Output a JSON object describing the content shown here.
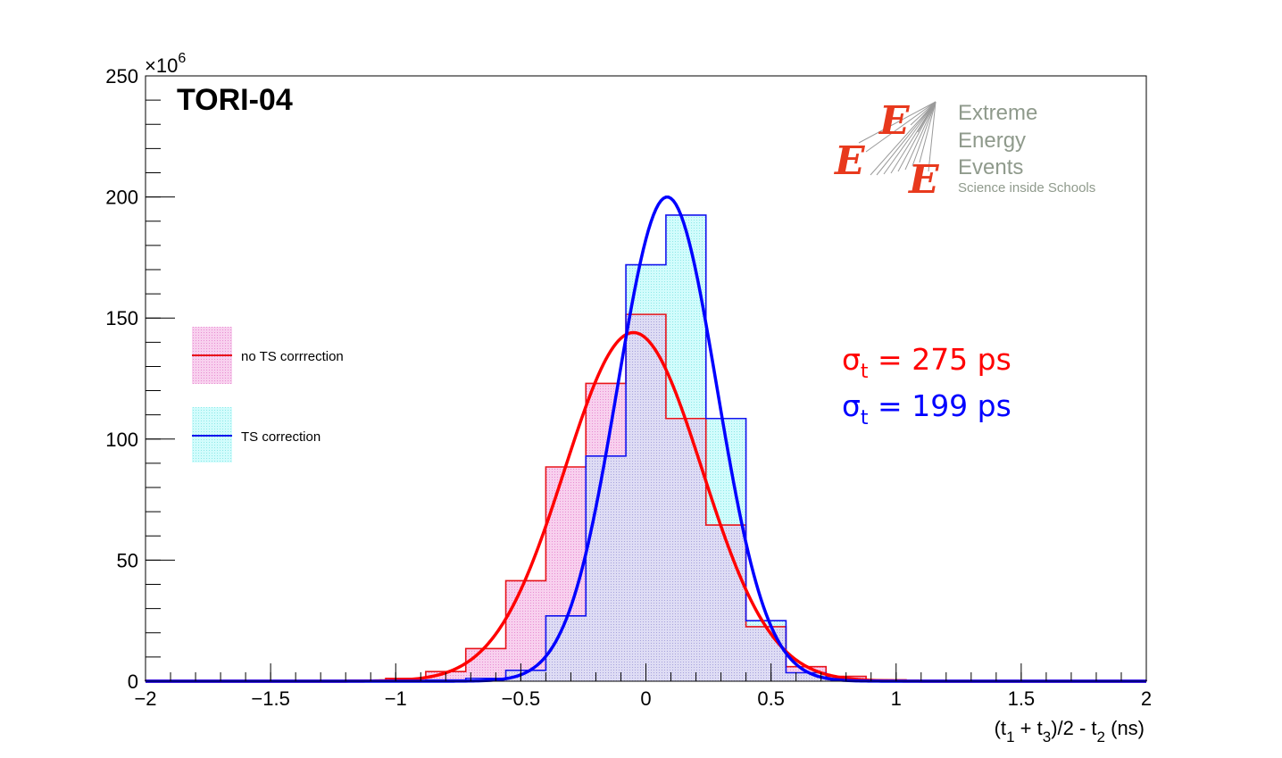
{
  "chart_data": {
    "type": "bar",
    "title": "TORI-04",
    "xlabel": {
      "pre": "(t",
      "sub1": "1",
      "mid1": " + t",
      "sub2": "3",
      "mid2": ")/2 - t",
      "sub3": "2",
      "post": " (ns)"
    },
    "yexponent": {
      "base": "×10",
      "power": "6"
    },
    "xlim": [
      -2,
      2
    ],
    "ylim": [
      0,
      250
    ],
    "xticks": [
      -2,
      -1.5,
      -1,
      -0.5,
      0,
      0.5,
      1,
      1.5,
      2
    ],
    "xtick_labels": [
      "−2",
      "−1.5",
      "−1",
      "−0.5",
      "0",
      "0.5",
      "1",
      "1.5",
      "2"
    ],
    "yticks": [
      0,
      50,
      100,
      150,
      200,
      250
    ],
    "ytick_labels": [
      "0",
      "50",
      "100",
      "150",
      "200",
      "250"
    ],
    "bin_edges": [
      -2,
      -1.84,
      -1.68,
      -1.52,
      -1.36,
      -1.2,
      -1.04,
      -0.88,
      -0.72,
      -0.56,
      -0.4,
      -0.24,
      -0.08,
      0.08,
      0.24,
      0.4,
      0.56,
      0.72,
      0.88,
      1.04,
      1.2,
      1.36,
      1.52,
      1.68,
      1.84,
      2
    ],
    "series": [
      {
        "name": "no TS corrrection",
        "line_color": "#e8141a",
        "fill_color": "#f8d0ee",
        "values": [
          0.3,
          0.3,
          0.3,
          0.3,
          0.3,
          0.4,
          1.2,
          4,
          13.5,
          41.5,
          88.5,
          123,
          151.5,
          108.5,
          64.5,
          22.5,
          6,
          2,
          0.6,
          0.3,
          0.2,
          0.2,
          0.2,
          0.2,
          0.2
        ],
        "fit": {
          "mean": -0.05,
          "sigma": 0.275,
          "amp": 144
        }
      },
      {
        "name": "TS correction",
        "line_color": "#1414ee",
        "fill_color": "#d2fcfc",
        "values": [
          0.1,
          0.1,
          0.1,
          0.1,
          0.1,
          0.1,
          0.2,
          0.5,
          1.2,
          4.5,
          27,
          93,
          172,
          192.5,
          108.5,
          25,
          3.5,
          0.8,
          0.3,
          0.2,
          0.1,
          0.1,
          0.1,
          0.1,
          0.1
        ],
        "fit": {
          "mean": 0.085,
          "sigma": 0.199,
          "amp": 200
        }
      }
    ],
    "overlap_fill_color": "#dedcf4",
    "annotations": [
      {
        "symbol": "σ",
        "sub": "t",
        "text": " = 275 ps",
        "color": "#ff0000"
      },
      {
        "symbol": "σ",
        "sub": "t",
        "text": " = 199 ps",
        "color": "#0000ff"
      }
    ]
  },
  "logo": {
    "lines": [
      "Extreme",
      "Energy",
      "Events"
    ],
    "tagline": "Science inside Schools",
    "letter": "E",
    "letter_color": "#e8391d",
    "text_color": "#8f9a8c"
  }
}
